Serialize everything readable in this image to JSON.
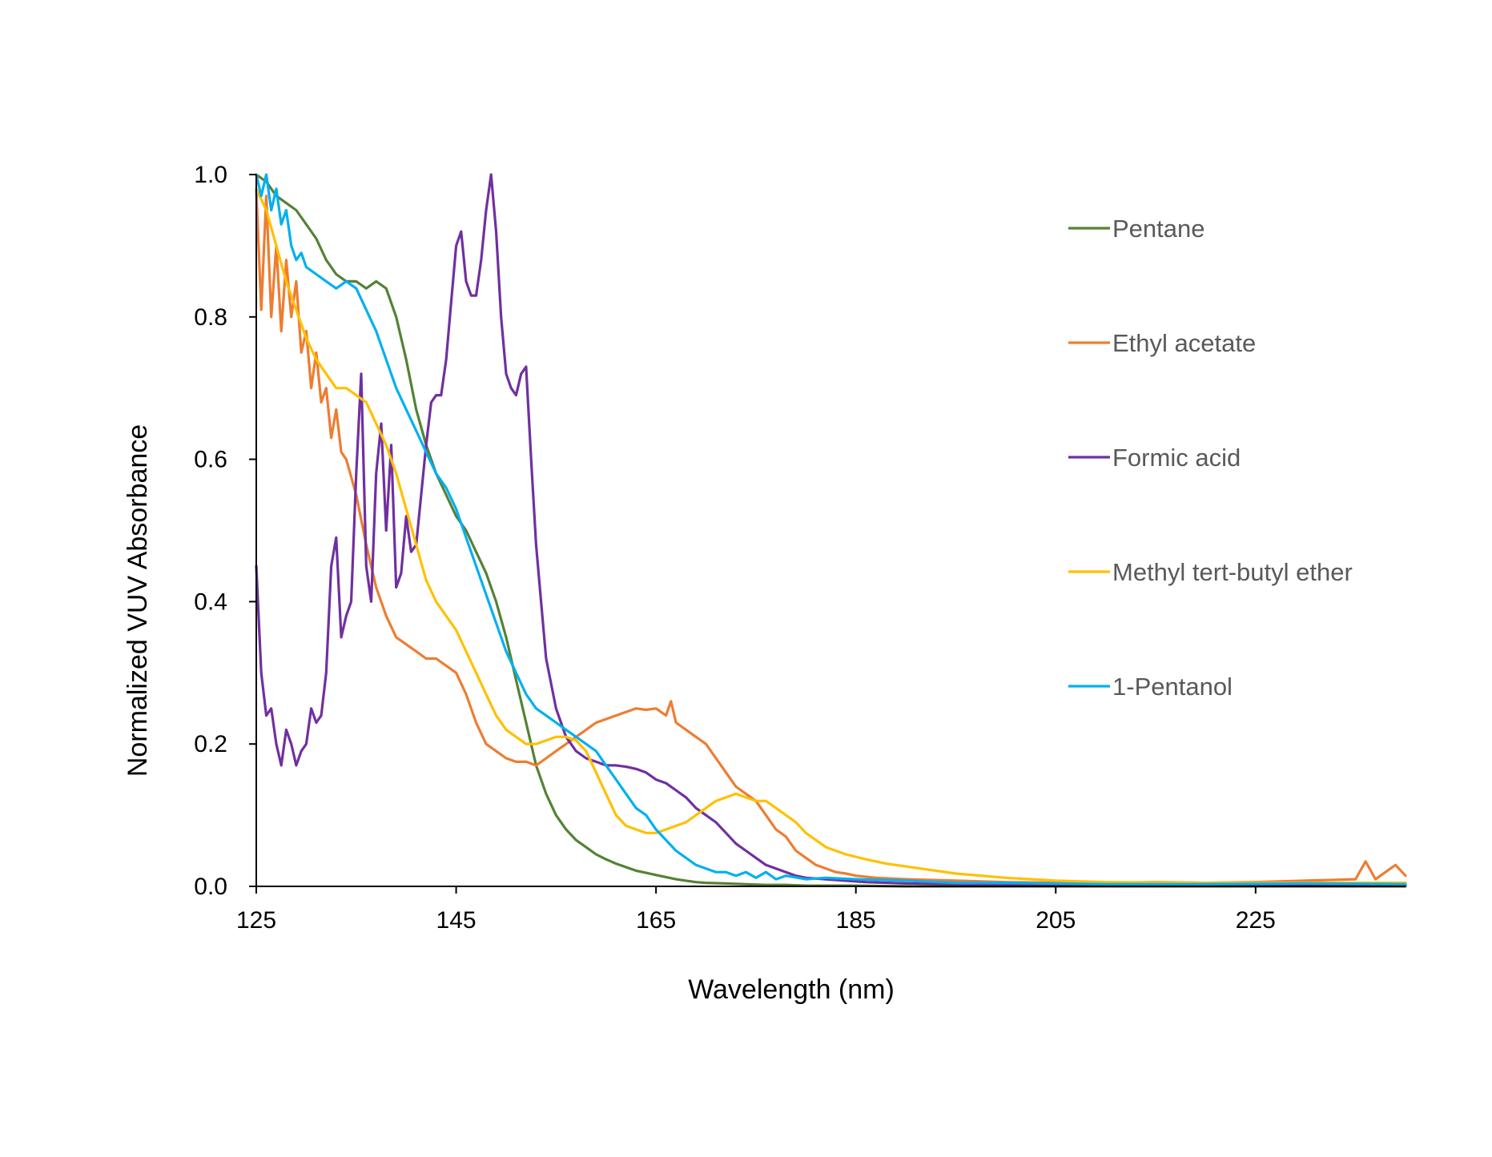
{
  "chart_data": {
    "type": "line",
    "title": "",
    "xlabel": "Wavelength (nm)",
    "ylabel": "Normalized VUV Absorbance",
    "xlim": [
      125,
      240
    ],
    "ylim": [
      0,
      1.0
    ],
    "x_ticks": [
      125,
      145,
      165,
      185,
      205,
      225
    ],
    "x_tick_labels": [
      "125",
      "145",
      "165",
      "185",
      "205",
      "225"
    ],
    "y_ticks": [
      0,
      0.2,
      0.4,
      0.6,
      0.8,
      1.0
    ],
    "y_tick_labels": [
      "0.0",
      "0.2",
      "0.4",
      "0.6",
      "0.8",
      "1.0"
    ],
    "grid": false,
    "legend_position": "right",
    "series": [
      {
        "name": "Pentane",
        "color": "#548235",
        "x": [
          125,
          126,
          127,
          128,
          129,
          130,
          131,
          132,
          133,
          134,
          135,
          136,
          137,
          138,
          139,
          140,
          141,
          142,
          143,
          144,
          145,
          146,
          147,
          148,
          149,
          150,
          151,
          152,
          153,
          154,
          155,
          156,
          157,
          158,
          159,
          160,
          161,
          162,
          163,
          164,
          165,
          166,
          167,
          168,
          169,
          170,
          172,
          174,
          176,
          178,
          180,
          185,
          190,
          200,
          210,
          220,
          230,
          240
        ],
        "y": [
          1.0,
          0.99,
          0.97,
          0.96,
          0.95,
          0.93,
          0.91,
          0.88,
          0.86,
          0.85,
          0.85,
          0.84,
          0.85,
          0.84,
          0.8,
          0.74,
          0.67,
          0.62,
          0.58,
          0.55,
          0.52,
          0.5,
          0.47,
          0.44,
          0.4,
          0.35,
          0.29,
          0.23,
          0.17,
          0.13,
          0.1,
          0.08,
          0.065,
          0.055,
          0.045,
          0.038,
          0.032,
          0.027,
          0.022,
          0.019,
          0.016,
          0.013,
          0.01,
          0.008,
          0.006,
          0.005,
          0.004,
          0.003,
          0.002,
          0.002,
          0.001,
          0.001,
          0.0,
          0.0,
          0.0,
          0.0,
          0.0,
          0.0
        ]
      },
      {
        "name": "Ethyl acetate",
        "color": "#ED7D31",
        "x": [
          125,
          125.5,
          126,
          126.5,
          127,
          127.5,
          128,
          128.5,
          129,
          129.5,
          130,
          130.5,
          131,
          131.5,
          132,
          132.5,
          133,
          133.5,
          134,
          135,
          136,
          137,
          138,
          139,
          140,
          141,
          142,
          143,
          144,
          145,
          146,
          147,
          148,
          149,
          150,
          151,
          152,
          153,
          154,
          155,
          156,
          157,
          158,
          159,
          160,
          161,
          162,
          163,
          164,
          165,
          166,
          166.5,
          167,
          168,
          169,
          170,
          171,
          172,
          173,
          174,
          175,
          176,
          177,
          178,
          179,
          180,
          181,
          182,
          183,
          184,
          185,
          187,
          190,
          195,
          200,
          205,
          210,
          215,
          220,
          225,
          230,
          235,
          236,
          237,
          238,
          239,
          240
        ],
        "y": [
          0.98,
          0.81,
          0.97,
          0.8,
          0.9,
          0.78,
          0.88,
          0.8,
          0.85,
          0.75,
          0.78,
          0.7,
          0.75,
          0.68,
          0.7,
          0.63,
          0.67,
          0.61,
          0.6,
          0.55,
          0.48,
          0.42,
          0.38,
          0.35,
          0.34,
          0.33,
          0.32,
          0.32,
          0.31,
          0.3,
          0.27,
          0.23,
          0.2,
          0.19,
          0.18,
          0.175,
          0.175,
          0.17,
          0.18,
          0.19,
          0.2,
          0.21,
          0.22,
          0.23,
          0.235,
          0.24,
          0.245,
          0.25,
          0.248,
          0.25,
          0.24,
          0.26,
          0.23,
          0.22,
          0.21,
          0.2,
          0.18,
          0.16,
          0.14,
          0.13,
          0.12,
          0.1,
          0.08,
          0.07,
          0.05,
          0.04,
          0.03,
          0.025,
          0.02,
          0.018,
          0.015,
          0.012,
          0.01,
          0.008,
          0.006,
          0.005,
          0.005,
          0.006,
          0.005,
          0.006,
          0.008,
          0.01,
          0.035,
          0.01,
          0.02,
          0.03,
          0.015
        ]
      },
      {
        "name": "Formic acid",
        "color": "#7030A0",
        "x": [
          125,
          125.5,
          126,
          126.5,
          127,
          127.5,
          128,
          128.5,
          129,
          129.5,
          130,
          130.5,
          131,
          131.5,
          132,
          132.5,
          133,
          133.5,
          134,
          134.5,
          135,
          135.5,
          136,
          136.5,
          137,
          137.5,
          138,
          138.5,
          139,
          139.5,
          140,
          140.5,
          141,
          141.5,
          142,
          142.5,
          143,
          143.5,
          144,
          144.5,
          145,
          145.5,
          146,
          146.5,
          147,
          147.5,
          148,
          148.5,
          149,
          149.5,
          150,
          150.5,
          151,
          151.5,
          152,
          152.5,
          153,
          153.5,
          154,
          155,
          156,
          157,
          158,
          159,
          160,
          161,
          162,
          163,
          164,
          165,
          166,
          167,
          168,
          169,
          170,
          171,
          172,
          173,
          174,
          175,
          176,
          177,
          178,
          179,
          180,
          182,
          184,
          186,
          190,
          195,
          200,
          210,
          220,
          230,
          240
        ],
        "y": [
          0.45,
          0.3,
          0.24,
          0.25,
          0.2,
          0.17,
          0.22,
          0.2,
          0.17,
          0.19,
          0.2,
          0.25,
          0.23,
          0.24,
          0.3,
          0.45,
          0.49,
          0.35,
          0.38,
          0.4,
          0.58,
          0.72,
          0.45,
          0.4,
          0.58,
          0.65,
          0.5,
          0.62,
          0.42,
          0.44,
          0.52,
          0.47,
          0.48,
          0.55,
          0.62,
          0.68,
          0.69,
          0.69,
          0.74,
          0.82,
          0.9,
          0.92,
          0.85,
          0.83,
          0.83,
          0.88,
          0.95,
          1.0,
          0.92,
          0.8,
          0.72,
          0.7,
          0.69,
          0.72,
          0.73,
          0.6,
          0.48,
          0.4,
          0.32,
          0.25,
          0.21,
          0.19,
          0.18,
          0.175,
          0.17,
          0.17,
          0.168,
          0.165,
          0.16,
          0.15,
          0.145,
          0.135,
          0.125,
          0.11,
          0.1,
          0.09,
          0.075,
          0.06,
          0.05,
          0.04,
          0.03,
          0.025,
          0.02,
          0.015,
          0.012,
          0.01,
          0.008,
          0.006,
          0.004,
          0.003,
          0.002,
          0.002,
          0.003,
          0.002,
          0.002
        ]
      },
      {
        "name": "Methyl tert-butyl ether",
        "color": "#FFC000",
        "x": [
          125,
          126,
          127,
          128,
          129,
          130,
          131,
          132,
          133,
          134,
          135,
          136,
          137,
          138,
          139,
          140,
          141,
          142,
          143,
          144,
          145,
          146,
          147,
          148,
          149,
          150,
          151,
          152,
          153,
          154,
          155,
          156,
          157,
          158,
          159,
          160,
          161,
          162,
          163,
          164,
          165,
          166,
          167,
          168,
          169,
          170,
          171,
          172,
          173,
          174,
          175,
          176,
          177,
          178,
          179,
          180,
          181,
          182,
          184,
          186,
          188,
          190,
          192,
          195,
          200,
          205,
          210,
          220,
          230,
          240
        ],
        "y": [
          0.98,
          0.95,
          0.9,
          0.85,
          0.81,
          0.77,
          0.74,
          0.72,
          0.7,
          0.7,
          0.69,
          0.68,
          0.65,
          0.62,
          0.58,
          0.53,
          0.48,
          0.43,
          0.4,
          0.38,
          0.36,
          0.33,
          0.3,
          0.27,
          0.24,
          0.22,
          0.21,
          0.2,
          0.2,
          0.205,
          0.21,
          0.21,
          0.205,
          0.19,
          0.16,
          0.13,
          0.1,
          0.085,
          0.08,
          0.075,
          0.075,
          0.08,
          0.085,
          0.09,
          0.1,
          0.11,
          0.12,
          0.125,
          0.13,
          0.125,
          0.12,
          0.12,
          0.11,
          0.1,
          0.09,
          0.075,
          0.065,
          0.055,
          0.045,
          0.038,
          0.032,
          0.028,
          0.024,
          0.018,
          0.012,
          0.008,
          0.006,
          0.005,
          0.005,
          0.005
        ]
      },
      {
        "name": "1-Pentanol",
        "color": "#00B0F0",
        "x": [
          125,
          125.5,
          126,
          126.5,
          127,
          127.5,
          128,
          128.5,
          129,
          129.5,
          130,
          131,
          132,
          133,
          134,
          135,
          136,
          137,
          138,
          139,
          140,
          141,
          142,
          143,
          144,
          145,
          146,
          147,
          148,
          149,
          150,
          151,
          152,
          153,
          154,
          155,
          156,
          157,
          158,
          159,
          160,
          161,
          162,
          163,
          164,
          165,
          166,
          167,
          168,
          169,
          170,
          171,
          172,
          173,
          174,
          175,
          176,
          177,
          178,
          180,
          182,
          185,
          190,
          195,
          200,
          210,
          220,
          230,
          240
        ],
        "y": [
          1.0,
          0.97,
          1.0,
          0.95,
          0.98,
          0.93,
          0.95,
          0.9,
          0.88,
          0.89,
          0.87,
          0.86,
          0.85,
          0.84,
          0.85,
          0.84,
          0.81,
          0.78,
          0.74,
          0.7,
          0.67,
          0.64,
          0.61,
          0.58,
          0.56,
          0.53,
          0.49,
          0.45,
          0.41,
          0.37,
          0.33,
          0.3,
          0.27,
          0.25,
          0.24,
          0.23,
          0.22,
          0.21,
          0.2,
          0.19,
          0.17,
          0.15,
          0.13,
          0.11,
          0.1,
          0.08,
          0.065,
          0.05,
          0.04,
          0.03,
          0.025,
          0.02,
          0.02,
          0.015,
          0.02,
          0.012,
          0.02,
          0.01,
          0.015,
          0.01,
          0.012,
          0.01,
          0.008,
          0.005,
          0.005,
          0.003,
          0.003,
          0.004,
          0.003
        ]
      }
    ]
  }
}
